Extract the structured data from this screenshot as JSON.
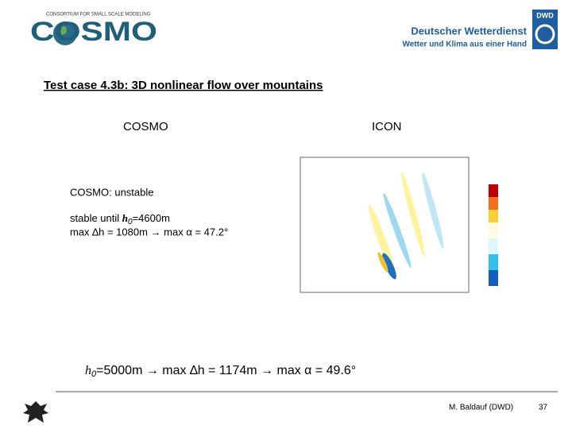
{
  "header": {
    "logo": "COSMO",
    "consortium": "CONSORTIUM FOR SMALL SCALE MODELING",
    "dwd_badge": "DWD",
    "dwd_name": "Deutscher Wetterdienst",
    "dwd_slogan": "Wetter und Klima aus einer Hand"
  },
  "title": "Test case 4.3b: 3D nonlinear flow over mountains",
  "columns": {
    "left": "COSMO",
    "right": "ICON"
  },
  "notes": {
    "line1": "COSMO: unstable",
    "line2_pre": "stable until ",
    "line2_var": "h",
    "line2_sub": "0",
    "line2_post": "=4600m",
    "line3": "max ∆h = 1080m → max α = 47.2°"
  },
  "summary": {
    "var": "h",
    "sub": "0",
    "post": "=5000m → max ∆h = 1174m → max α = 49.6°"
  },
  "footer": {
    "author": "M. Baldauf (DWD)",
    "page": "37"
  }
}
